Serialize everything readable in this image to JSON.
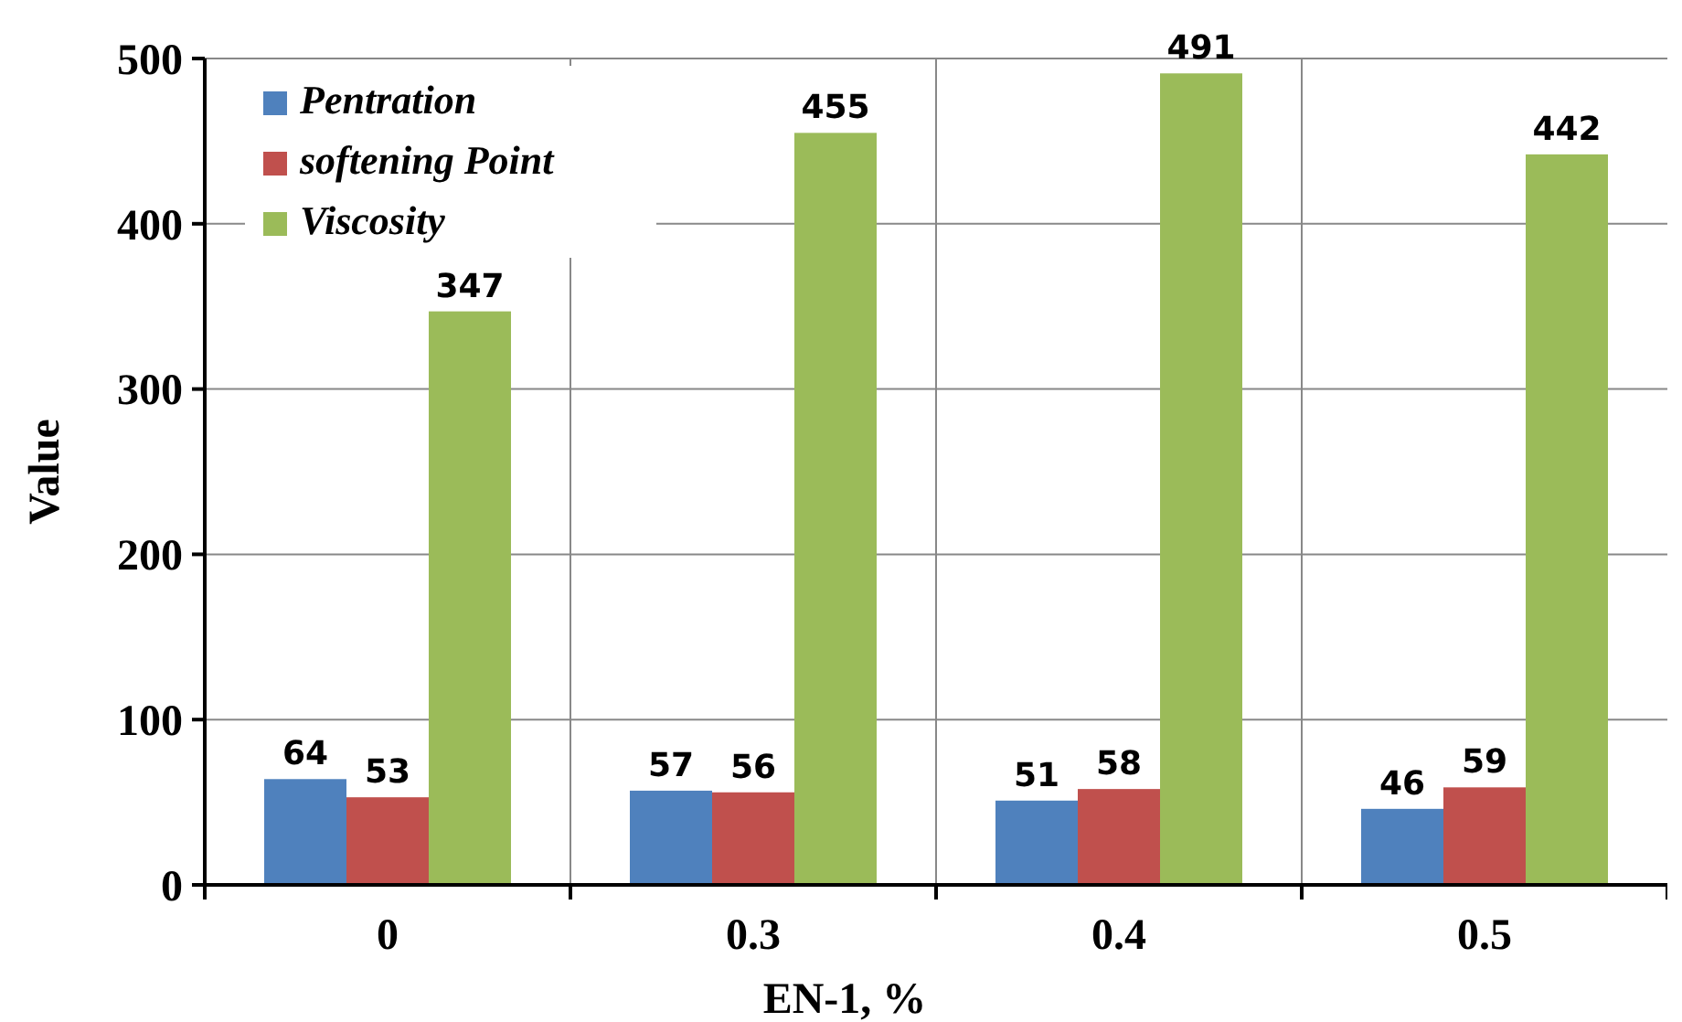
{
  "chart_data": {
    "type": "bar",
    "xlabel": "EN-1, %",
    "ylabel": "Value",
    "categories": [
      "0",
      "0.3",
      "0.4",
      "0.5"
    ],
    "series": [
      {
        "name": "Pentration",
        "color": "#4f81bd",
        "values": [
          64,
          57,
          51,
          46
        ]
      },
      {
        "name": "softening Point",
        "color": "#c0504d",
        "values": [
          53,
          56,
          58,
          59
        ]
      },
      {
        "name": "Viscosity",
        "color": "#9bbb59",
        "values": [
          347,
          455,
          491,
          442
        ]
      }
    ],
    "ylim": [
      0,
      500
    ],
    "yticks": [
      0,
      100,
      200,
      300,
      400,
      500
    ],
    "grid": true,
    "legend": "top left",
    "data_labels": true
  }
}
